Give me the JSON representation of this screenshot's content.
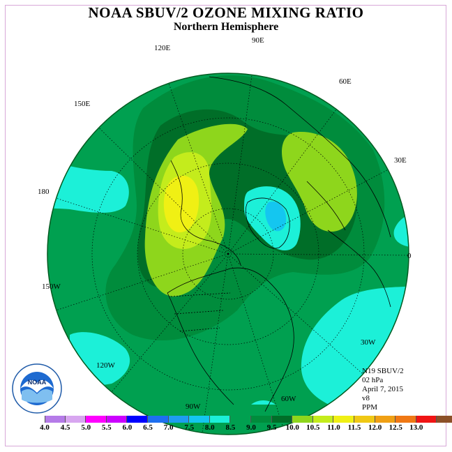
{
  "title": "NOAA SBUV/2 OZONE MIXING RATIO",
  "subtitle": "Northern Hemisphere",
  "longitude_labels": {
    "lon_90e": "90E",
    "lon_60e": "60E",
    "lon_30e": "30E",
    "lon_0": "0",
    "lon_30w": "30W",
    "lon_60w": "60W",
    "lon_90w": "90W",
    "lon_120w": "120W",
    "lon_150w": "150W",
    "lon_180": "180",
    "lon_150e": "150E",
    "lon_120e": "120E"
  },
  "info": {
    "satellite": "N19 SBUV/2",
    "level": "02 hPa",
    "date": "April 7, 2015",
    "version": "v8",
    "units": "PPM"
  },
  "logo_text": "NOAA",
  "colorbar": {
    "colors": [
      "#b57be8",
      "#d8a6f0",
      "#ff00ff",
      "#cc00ff",
      "#0000ff",
      "#1e6ff0",
      "#1e9df0",
      "#14c6f0",
      "#1cf0d8",
      "#00a050",
      "#008c3c",
      "#006e28",
      "#8ed61c",
      "#c4ec1c",
      "#f0f014",
      "#f0c814",
      "#f0a014",
      "#f07814",
      "#f01414",
      "#8c5028"
    ],
    "ticks": [
      "4.0",
      "4.5",
      "5.0",
      "5.5",
      "6.0",
      "6.5",
      "7.0",
      "7.5",
      "8.0",
      "8.5",
      "9.0",
      "9.5",
      "10.0",
      "10.5",
      "11.0",
      "11.5",
      "12.0",
      "12.5",
      "13.0"
    ]
  }
}
